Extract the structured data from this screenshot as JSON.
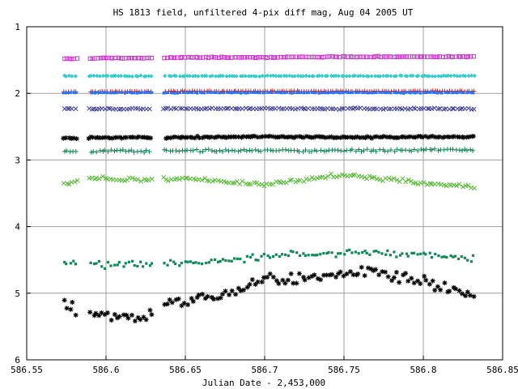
{
  "chart_data": {
    "type": "scatter",
    "title": "HS 1813 field, unfiltered 4-pix diff mag, Aug 04 2005 UT",
    "xlabel": "Julian Date - 2,453,000",
    "ylabel": "",
    "xlim": [
      586.55,
      586.85
    ],
    "ylim": [
      1,
      6
    ],
    "y_inverted": true,
    "grid": true,
    "legend": "none",
    "x_ticks": [
      "586.55",
      "586.6",
      "586.65",
      "586.7",
      "586.75",
      "586.8",
      "586.85"
    ],
    "y_ticks": [
      "1",
      "2",
      "3",
      "4",
      "5",
      "6"
    ],
    "x_range_observed": [
      586.573,
      586.833
    ],
    "gaps": [
      [
        586.582,
        586.589
      ],
      [
        586.629,
        586.636
      ]
    ],
    "series": [
      {
        "marker": "open-square",
        "color": "#cc33cc",
        "values": [
          {
            "x": 586.575,
            "y": 1.48
          },
          {
            "x": 586.6,
            "y": 1.47
          },
          {
            "x": 586.625,
            "y": 1.47
          },
          {
            "x": 586.65,
            "y": 1.46
          },
          {
            "x": 586.7,
            "y": 1.46
          },
          {
            "x": 586.75,
            "y": 1.45
          },
          {
            "x": 586.8,
            "y": 1.45
          },
          {
            "x": 586.833,
            "y": 1.45
          }
        ]
      },
      {
        "marker": "diamond",
        "color": "#33cccc",
        "values": [
          {
            "x": 586.575,
            "y": 1.74
          },
          {
            "x": 586.65,
            "y": 1.74
          },
          {
            "x": 586.75,
            "y": 1.74
          },
          {
            "x": 586.833,
            "y": 1.74
          }
        ]
      },
      {
        "marker": "plus",
        "color": "#cc2222",
        "values": [
          {
            "x": 586.575,
            "y": 1.98
          },
          {
            "x": 586.65,
            "y": 1.97
          },
          {
            "x": 586.75,
            "y": 1.97
          },
          {
            "x": 586.833,
            "y": 1.97
          }
        ]
      },
      {
        "marker": "filled-square",
        "color": "#1f77ff",
        "values": [
          {
            "x": 586.575,
            "y": 1.99
          },
          {
            "x": 586.65,
            "y": 1.99
          },
          {
            "x": 586.75,
            "y": 1.99
          },
          {
            "x": 586.833,
            "y": 1.99
          }
        ]
      },
      {
        "marker": "x",
        "color": "#3d3d99",
        "values": [
          {
            "x": 586.575,
            "y": 2.23
          },
          {
            "x": 586.65,
            "y": 2.23
          },
          {
            "x": 586.75,
            "y": 2.23
          },
          {
            "x": 586.833,
            "y": 2.23
          }
        ]
      },
      {
        "marker": "asterisk",
        "color": "#000000",
        "values": [
          {
            "x": 586.575,
            "y": 2.67
          },
          {
            "x": 586.65,
            "y": 2.66
          },
          {
            "x": 586.7,
            "y": 2.65
          },
          {
            "x": 586.75,
            "y": 2.66
          },
          {
            "x": 586.833,
            "y": 2.65
          }
        ]
      },
      {
        "marker": "plus",
        "color": "#118855",
        "values": [
          {
            "x": 586.575,
            "y": 2.87
          },
          {
            "x": 586.65,
            "y": 2.86
          },
          {
            "x": 586.75,
            "y": 2.86
          },
          {
            "x": 586.833,
            "y": 2.84
          }
        ]
      },
      {
        "marker": "x",
        "color": "#55bb33",
        "values": [
          {
            "x": 586.575,
            "y": 3.35
          },
          {
            "x": 586.59,
            "y": 3.27
          },
          {
            "x": 586.62,
            "y": 3.3
          },
          {
            "x": 586.65,
            "y": 3.28
          },
          {
            "x": 586.7,
            "y": 3.37
          },
          {
            "x": 586.75,
            "y": 3.22
          },
          {
            "x": 586.8,
            "y": 3.35
          },
          {
            "x": 586.833,
            "y": 3.4
          }
        ]
      },
      {
        "marker": "filled-square",
        "color": "#118855",
        "values": [
          {
            "x": 586.575,
            "y": 4.55
          },
          {
            "x": 586.6,
            "y": 4.57
          },
          {
            "x": 586.65,
            "y": 4.55
          },
          {
            "x": 586.7,
            "y": 4.45
          },
          {
            "x": 586.75,
            "y": 4.38
          },
          {
            "x": 586.8,
            "y": 4.42
          },
          {
            "x": 586.833,
            "y": 4.48
          }
        ]
      },
      {
        "marker": "asterisk",
        "color": "#000000",
        "values": [
          {
            "x": 586.575,
            "y": 5.2
          },
          {
            "x": 586.6,
            "y": 5.33
          },
          {
            "x": 586.62,
            "y": 5.38
          },
          {
            "x": 586.64,
            "y": 5.15
          },
          {
            "x": 586.67,
            "y": 5.05
          },
          {
            "x": 586.7,
            "y": 4.82
          },
          {
            "x": 586.74,
            "y": 4.75
          },
          {
            "x": 586.77,
            "y": 4.65
          },
          {
            "x": 586.8,
            "y": 4.85
          },
          {
            "x": 586.833,
            "y": 5.0
          }
        ]
      }
    ]
  }
}
